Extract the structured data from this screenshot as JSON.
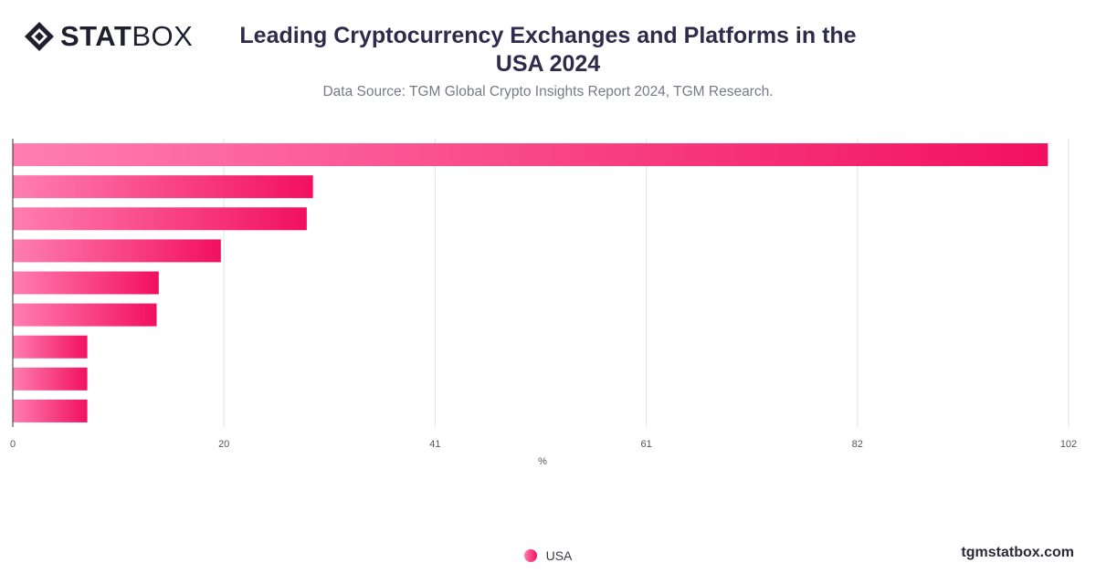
{
  "header": {
    "logo_bold": "STAT",
    "logo_light": "BOX",
    "title": "Leading Cryptocurrency Exchanges and Platforms in the USA 2024",
    "subtitle": "Data Source: TGM Global Crypto Insights Report 2024, TGM Research."
  },
  "icons": {
    "logo": "diamond-logo-icon",
    "legend_marker": "circle-icon"
  },
  "colors": {
    "bar_start": "#ff7eb0",
    "bar_end": "#f2105f",
    "grid": "#e3e3e8",
    "axis": "#333333"
  },
  "chart_data": {
    "type": "bar",
    "orientation": "horizontal",
    "xlabel": "%",
    "ylabel": "",
    "xlim": [
      0,
      102
    ],
    "xticks": [
      "0",
      "20",
      "41",
      "61",
      "82",
      "102"
    ],
    "xtick_values": [
      0,
      20.4,
      40.8,
      61.2,
      81.6,
      102
    ],
    "grid": true,
    "legend_position": "bottom-center",
    "series": [
      {
        "name": "USA",
        "values": [
          100,
          29,
          28.4,
          20.1,
          14.1,
          13.9,
          7.2,
          7.2,
          7.2
        ]
      }
    ]
  },
  "footer": {
    "site": "tgmstatbox.com"
  }
}
